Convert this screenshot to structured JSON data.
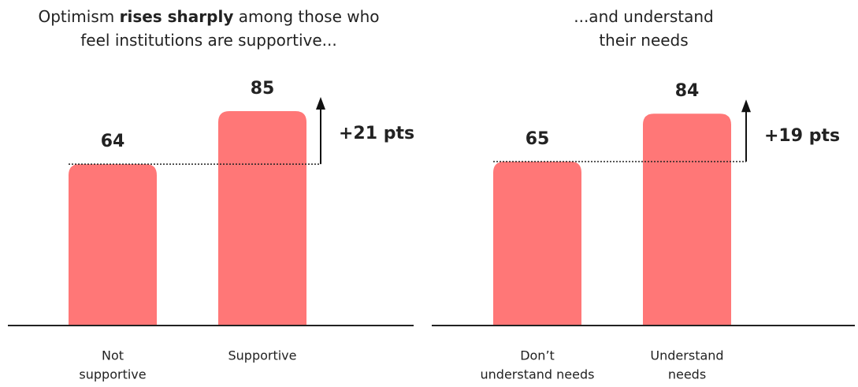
{
  "chart_data": [
    {
      "type": "bar",
      "title_lines": [
        [
          {
            "text": "Optimism ",
            "bold": false
          },
          {
            "text": "rises sharply",
            "bold": true
          },
          {
            "text": " among those who",
            "bold": false
          }
        ],
        [
          {
            "text": "feel institutions are supportive...",
            "bold": false
          }
        ]
      ],
      "categories": [
        [
          "Not",
          "supportive"
        ],
        [
          "Supportive"
        ]
      ],
      "values": [
        64,
        85
      ],
      "annotation": "+21 pts",
      "color": "#ff7777",
      "ylim": [
        0,
        100
      ]
    },
    {
      "type": "bar",
      "title_lines": [
        [
          {
            "text": "...and understand",
            "bold": false
          }
        ],
        [
          {
            "text": "their needs",
            "bold": false
          }
        ]
      ],
      "categories": [
        [
          "Don’t",
          "understand needs"
        ],
        [
          "Understand",
          "needs"
        ]
      ],
      "values": [
        65,
        84
      ],
      "annotation": "+19 pts",
      "color": "#ff7777",
      "ylim": [
        0,
        100
      ]
    }
  ]
}
